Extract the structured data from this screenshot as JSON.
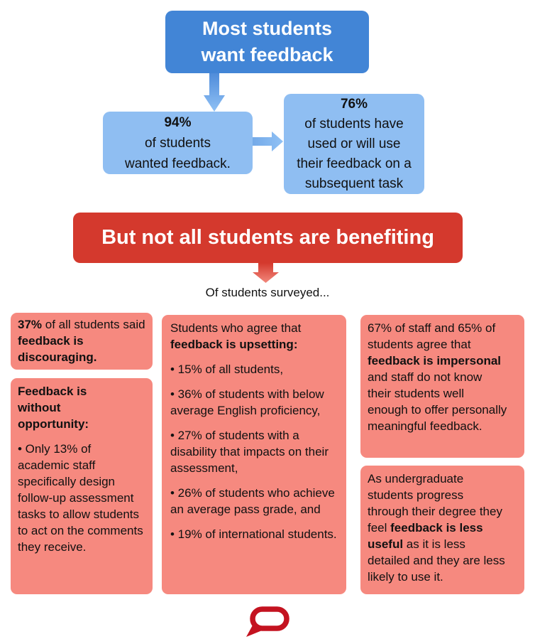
{
  "colors": {
    "primary_blue": "#4285D6",
    "light_blue": "#8FBEF2",
    "alert_red": "#D4392D",
    "card_pink": "#F6897F",
    "logo_red": "#C41320"
  },
  "header": {
    "title_line1": "Most students",
    "title_line2": "want feedback"
  },
  "flow": {
    "stat_94": {
      "stat": "94%",
      "line1": "of students",
      "line2": "wanted feedback."
    },
    "stat_76": {
      "stat": "76%",
      "line1": "of students have",
      "line2": "used or will use",
      "line3": "their feedback on a",
      "line4": "subsequent task"
    },
    "banner_label": "But not all students are benefiting",
    "surveyed_caption": "Of students surveyed..."
  },
  "icons": {
    "down_arrow_blue": "arrow-down-blue-icon",
    "right_arrow_blue": "arrow-right-blue-icon",
    "down_arrow_red": "arrow-down-red-icon",
    "logo": "conversation-speech-bubble-logo"
  },
  "columns": {
    "left": {
      "discouraging": [
        {
          "t": "37%",
          "b": 1
        },
        {
          "t": " of all students said ",
          "b": 0
        },
        {
          "t": "feedback is discouraging.",
          "b": 1
        }
      ],
      "opportunity_heading": [
        {
          "t": "Feedback is without opportunity:",
          "b": 1
        }
      ],
      "opportunity_body": [
        {
          "t": "• Only 13% of academic staff specifically design follow-up assessment tasks to allow students to act on the comments they receive.",
          "b": 0
        }
      ]
    },
    "middle": {
      "intro": [
        {
          "t": "Students who agree that ",
          "b": 0
        },
        {
          "t": "feedback is upsetting:",
          "b": 1
        }
      ],
      "bullets": [
        [
          {
            "t": "• 15% of all students,",
            "b": 0
          }
        ],
        [
          {
            "t": "• 36% of students with below average English proficiency,",
            "b": 0
          }
        ],
        [
          {
            "t": "• 27% of students with a disability that impacts on their assessment,",
            "b": 0
          }
        ],
        [
          {
            "t": "• 26% of students who achieve an average pass grade, and",
            "b": 0
          }
        ],
        [
          {
            "t": "• 19% of international students.",
            "b": 0
          }
        ]
      ]
    },
    "right": {
      "impersonal": [
        {
          "t": "67% of staff and 65% of students agree that ",
          "b": 0
        },
        {
          "t": "feedback is impersonal",
          "b": 1
        },
        {
          "t": " and staff do not know their students well enough to offer personally meaningful feedback.",
          "b": 0
        }
      ],
      "less_useful": [
        {
          "t": "As undergraduate students progress through their degree they feel ",
          "b": 0
        },
        {
          "t": "feedback is less useful",
          "b": 1
        },
        {
          "t": " as it is less detailed and they are less likely to use it.",
          "b": 0
        }
      ]
    }
  }
}
